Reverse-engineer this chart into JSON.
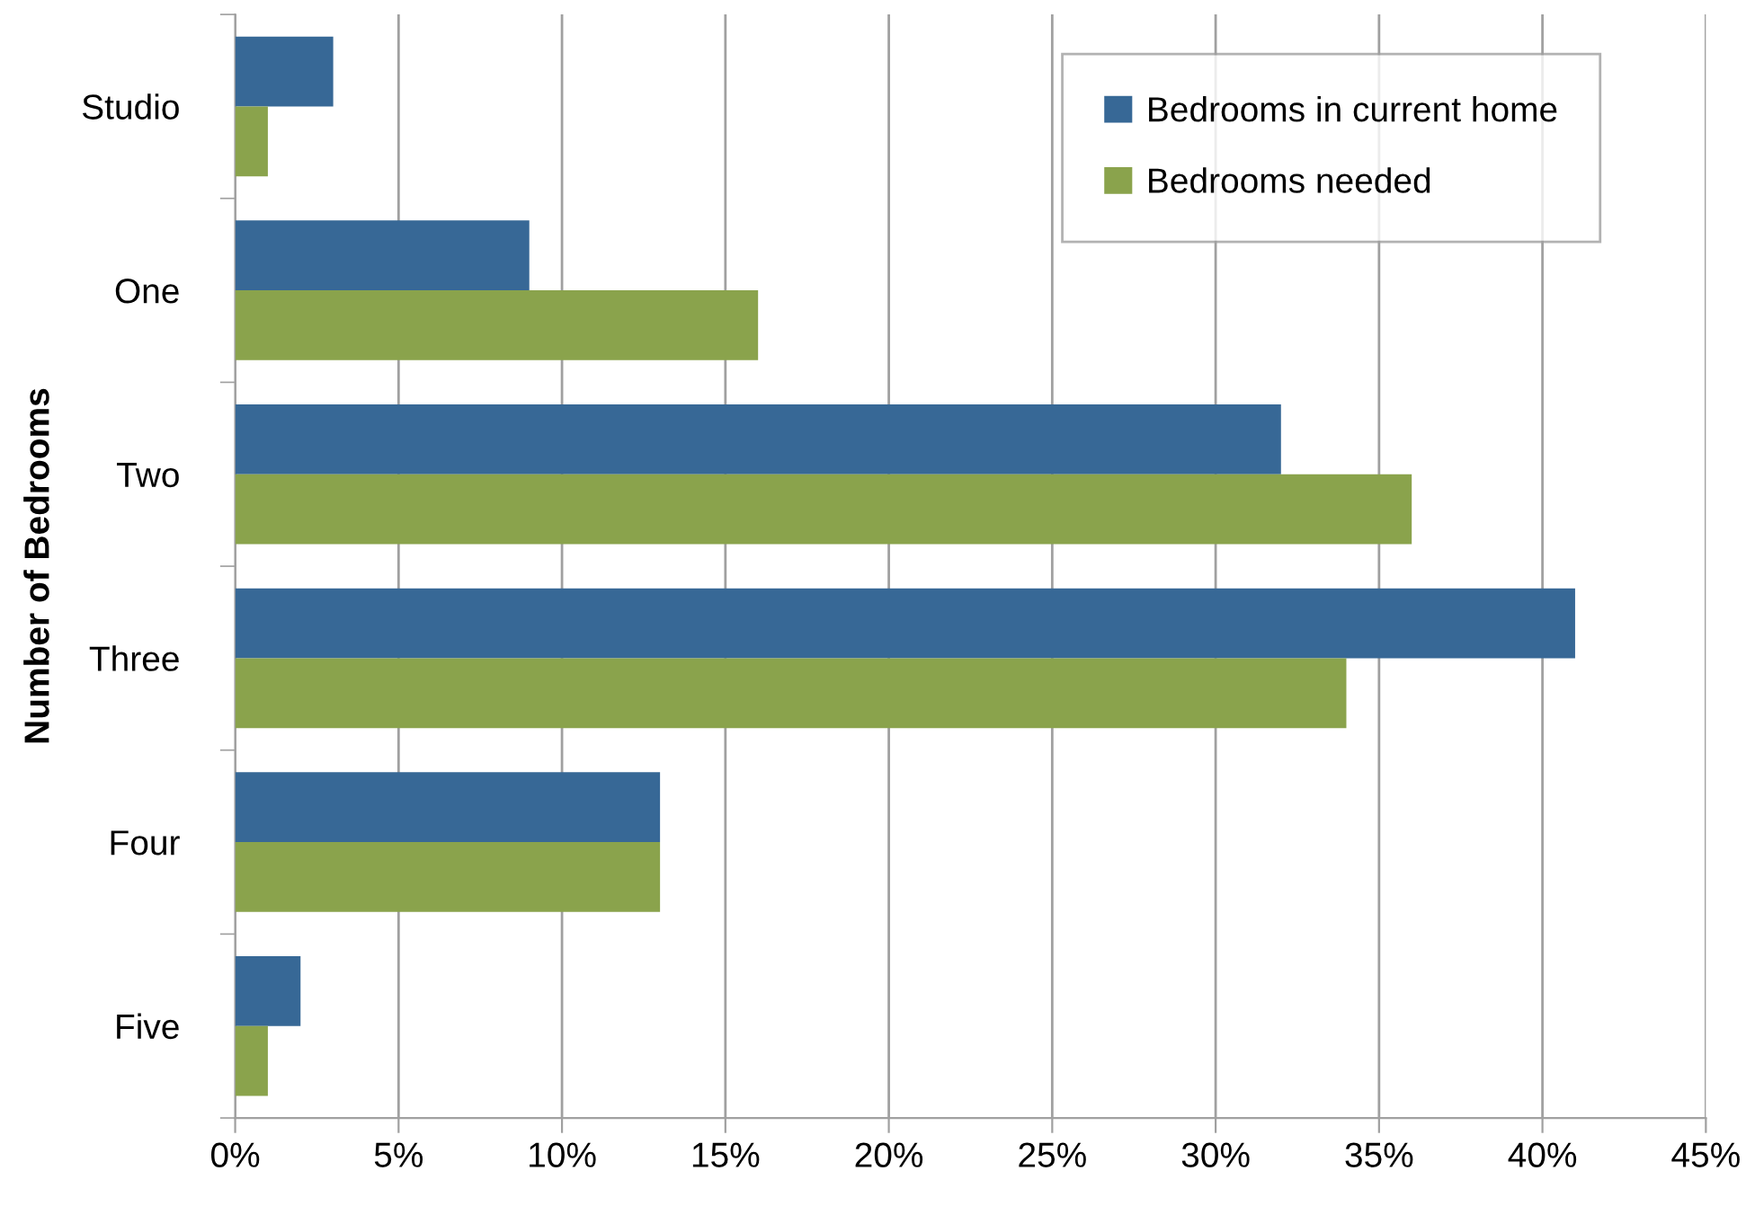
{
  "chart_data": {
    "type": "bar",
    "orientation": "horizontal",
    "ylabel": "Number of Bedrooms",
    "categories": [
      "Studio",
      "One",
      "Two",
      "Three",
      "Four",
      "Five"
    ],
    "series": [
      {
        "name": "Bedrooms in current home",
        "color": "#376896",
        "values": [
          3,
          9,
          32,
          41,
          13,
          2
        ]
      },
      {
        "name": "Bedrooms needed",
        "color": "#8aa34c",
        "values": [
          1,
          16,
          36,
          34,
          13,
          1
        ]
      }
    ],
    "xlim": [
      0,
      45
    ],
    "xticks": [
      {
        "value": 0,
        "label": "0%"
      },
      {
        "value": 5,
        "label": "5%"
      },
      {
        "value": 10,
        "label": "10%"
      },
      {
        "value": 15,
        "label": "15%"
      },
      {
        "value": 20,
        "label": "20%"
      },
      {
        "value": 25,
        "label": "25%"
      },
      {
        "value": 30,
        "label": "30%"
      },
      {
        "value": 35,
        "label": "35%"
      },
      {
        "value": 40,
        "label": "40%"
      },
      {
        "value": 45,
        "label": "45%"
      }
    ],
    "grid": "x",
    "legend": "top right"
  }
}
